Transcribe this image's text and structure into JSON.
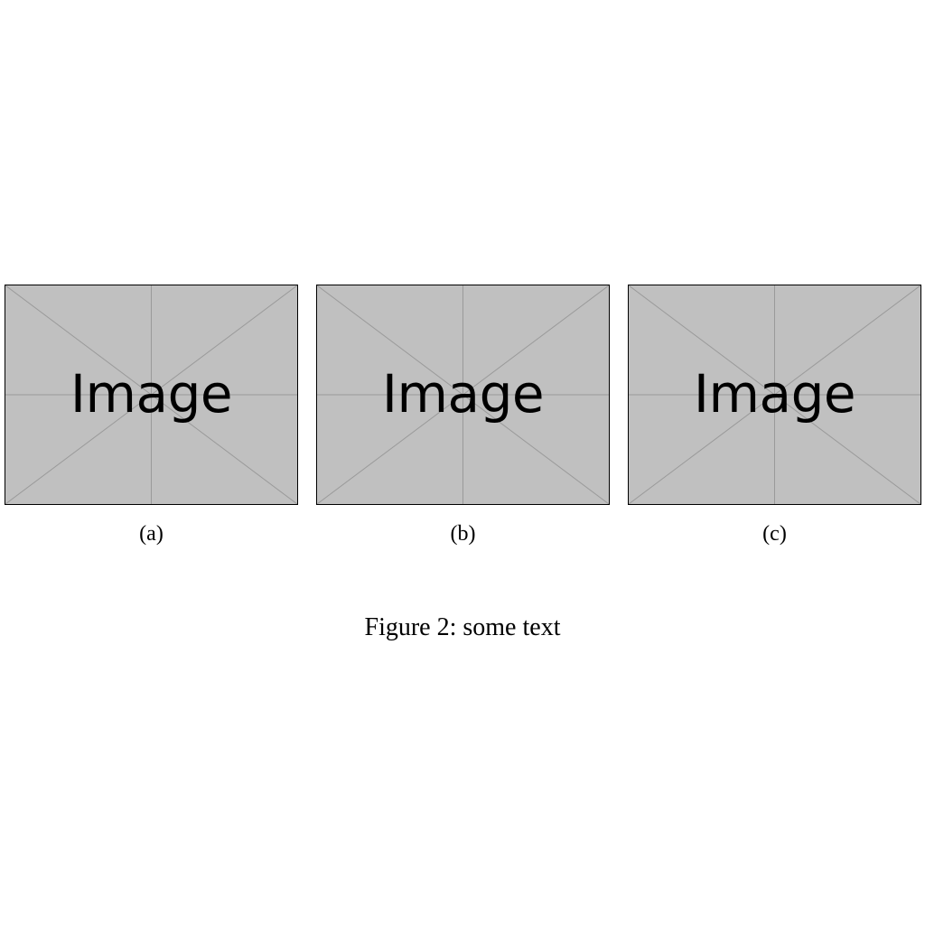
{
  "figure": {
    "caption": "Figure 2: some text",
    "subfigures": [
      {
        "placeholder_text": "Image",
        "label": "(a)"
      },
      {
        "placeholder_text": "Image",
        "label": "(b)"
      },
      {
        "placeholder_text": "Image",
        "label": "(c)"
      }
    ],
    "colors": {
      "placeholder_fill": "#c0c0c0",
      "placeholder_lines": "#9a9a9a",
      "border": "#000000"
    }
  }
}
